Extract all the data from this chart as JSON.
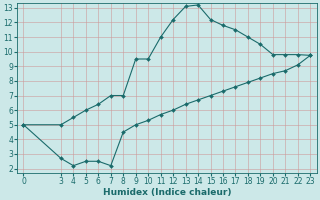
{
  "xlabel": "Humidex (Indice chaleur)",
  "bg_color": "#cce8e8",
  "grid_color": "#aacccc",
  "line_color": "#1a6b6b",
  "upper_x": [
    0,
    3,
    4,
    5,
    6,
    7,
    8,
    9,
    10,
    11,
    12,
    13,
    14,
    15,
    16,
    17,
    18,
    19,
    20,
    21,
    22,
    23
  ],
  "upper_y": [
    5.0,
    5.0,
    5.5,
    6.0,
    6.4,
    7.0,
    7.0,
    9.5,
    9.5,
    11.0,
    12.2,
    13.1,
    13.2,
    12.2,
    11.8,
    11.5,
    11.0,
    10.5,
    9.8,
    9.8,
    9.8,
    9.75
  ],
  "lower_x": [
    0,
    3,
    4,
    5,
    6,
    7,
    8,
    9,
    10,
    11,
    12,
    13,
    14,
    15,
    16,
    17,
    18,
    19,
    20,
    21,
    22,
    23
  ],
  "lower_y": [
    5.0,
    2.7,
    2.2,
    2.5,
    2.5,
    2.2,
    4.5,
    5.0,
    5.3,
    5.7,
    6.0,
    6.4,
    6.7,
    7.0,
    7.3,
    7.6,
    7.9,
    8.2,
    8.5,
    8.7,
    9.1,
    9.75
  ],
  "xlim": [
    -0.5,
    23.5
  ],
  "ylim": [
    1.7,
    13.3
  ],
  "xticks": [
    0,
    3,
    4,
    5,
    6,
    7,
    8,
    9,
    10,
    11,
    12,
    13,
    14,
    15,
    16,
    17,
    18,
    19,
    20,
    21,
    22,
    23
  ],
  "yticks": [
    2,
    3,
    4,
    5,
    6,
    7,
    8,
    9,
    10,
    11,
    12,
    13
  ],
  "markersize": 2.0,
  "linewidth": 0.8,
  "xlabel_fontsize": 6.5,
  "tick_fontsize": 5.5
}
